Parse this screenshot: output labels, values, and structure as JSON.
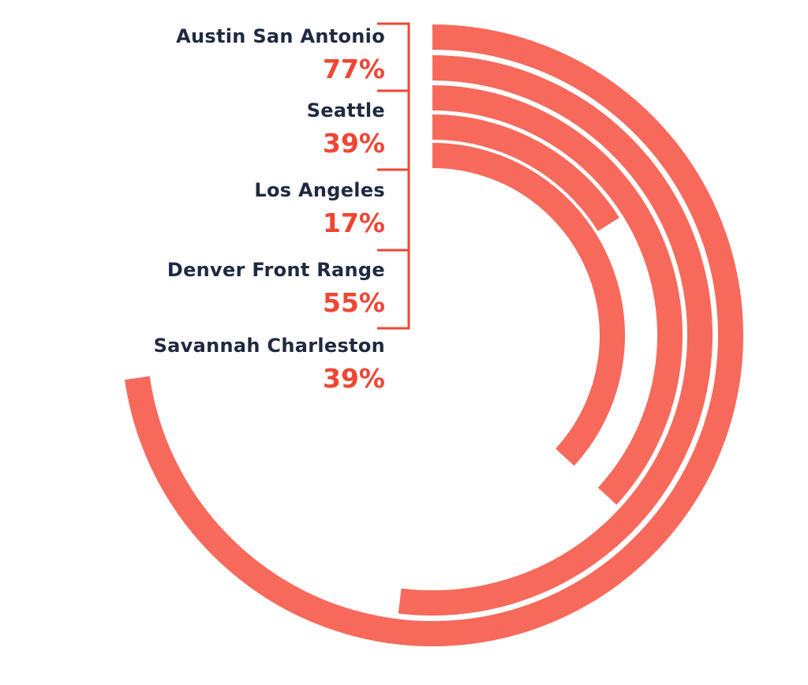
{
  "chart_data": {
    "type": "radial-bar",
    "categories": [
      "Austin San Antonio",
      "Seattle",
      "Los Angeles",
      "Denver Front Range",
      "Savannah Charleston"
    ],
    "values": [
      77,
      39,
      17,
      55,
      39
    ],
    "labels": [
      "77%",
      "39%",
      "17%",
      "55%",
      "39%"
    ],
    "unit": "%",
    "grid": false,
    "colors": {
      "bar": "#f7695a",
      "label_name": "#1f2a40",
      "label_value": "#ef4634",
      "bracket": "#ef4634"
    }
  }
}
